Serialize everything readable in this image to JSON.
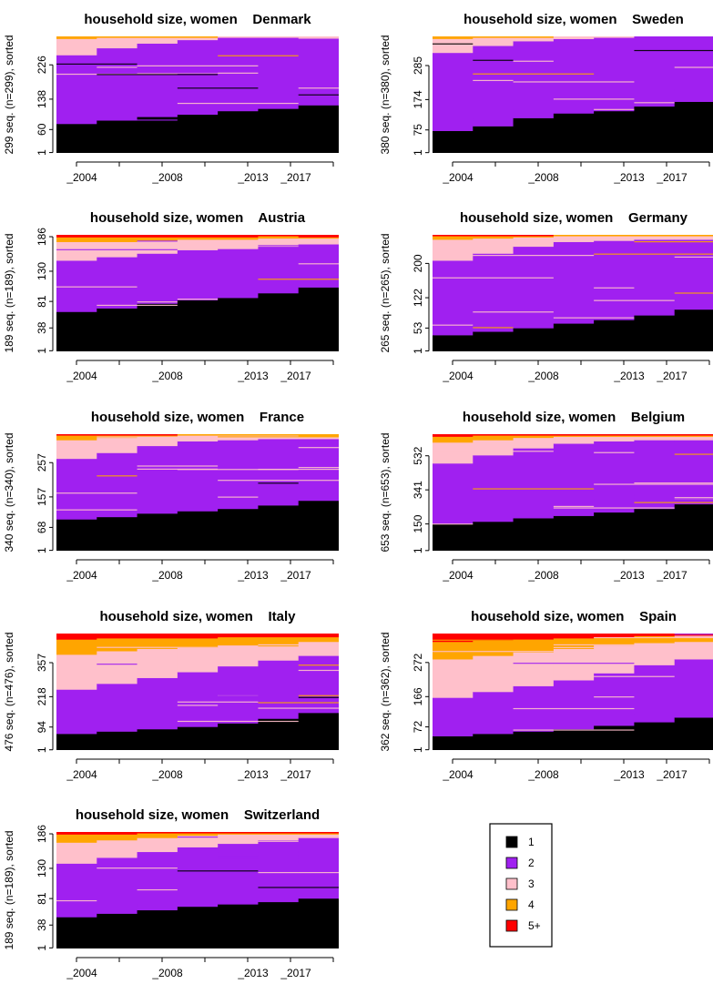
{
  "colors": {
    "1": "#000000",
    "2": "#A020F0",
    "3": "#FFC0CB",
    "4": "#FFA500",
    "5+": "#FF0000",
    "stripe": "#E8B8F0"
  },
  "legend": {
    "items": [
      {
        "label": "1",
        "color": "#000000"
      },
      {
        "label": "2",
        "color": "#A020F0"
      },
      {
        "label": "3",
        "color": "#FFC0CB"
      },
      {
        "label": "4",
        "color": "#FFA500"
      },
      {
        "label": "5+",
        "color": "#FF0000"
      }
    ]
  },
  "chart_data": [
    {
      "type": "area",
      "title": "household size, women    Denmark",
      "ylabel": "299 seq. (n=299), sorted",
      "n": 299,
      "yticks": [
        1,
        60,
        138,
        226
      ],
      "xticks": [
        "_2004",
        "_2008",
        "_2013",
        "_2017"
      ],
      "x": [
        2004,
        2006,
        2008,
        2010,
        2012,
        2014,
        2016
      ],
      "series": [
        {
          "name": "1",
          "values": [
            0.25,
            0.28,
            0.31,
            0.33,
            0.36,
            0.38,
            0.41
          ]
        },
        {
          "name": "2",
          "values": [
            0.59,
            0.62,
            0.63,
            0.64,
            0.63,
            0.61,
            0.58
          ]
        },
        {
          "name": "3",
          "values": [
            0.14,
            0.09,
            0.05,
            0.02,
            0.01,
            0.01,
            0.01
          ]
        },
        {
          "name": "4",
          "values": [
            0.02,
            0.01,
            0.01,
            0.01,
            0,
            0,
            0
          ]
        },
        {
          "name": "5+",
          "values": [
            0,
            0,
            0,
            0,
            0,
            0,
            0
          ]
        }
      ]
    },
    {
      "type": "area",
      "title": "household size, women    Sweden",
      "ylabel": "380 seq. (n=380), sorted",
      "n": 380,
      "yticks": [
        1,
        75,
        174,
        285
      ],
      "xticks": [
        "_2004",
        "_2008",
        "_2013",
        "_2017"
      ],
      "x": [
        2004,
        2006,
        2008,
        2010,
        2012,
        2014,
        2016
      ],
      "series": [
        {
          "name": "1",
          "values": [
            0.19,
            0.23,
            0.3,
            0.34,
            0.36,
            0.4,
            0.44
          ]
        },
        {
          "name": "2",
          "values": [
            0.67,
            0.69,
            0.66,
            0.64,
            0.63,
            0.6,
            0.56
          ]
        },
        {
          "name": "3",
          "values": [
            0.12,
            0.07,
            0.03,
            0.02,
            0.01,
            0,
            0
          ]
        },
        {
          "name": "4",
          "values": [
            0.02,
            0.01,
            0.01,
            0,
            0,
            0,
            0
          ]
        },
        {
          "name": "5+",
          "values": [
            0,
            0,
            0,
            0,
            0,
            0,
            0
          ]
        }
      ]
    },
    {
      "type": "area",
      "title": "household size, women    Austria",
      "ylabel": "189 seq. (n=189), sorted",
      "n": 189,
      "yticks": [
        1,
        38,
        81,
        130,
        186
      ],
      "xticks": [
        "_2004",
        "_2008",
        "_2013",
        "_2017"
      ],
      "x": [
        2004,
        2006,
        2008,
        2010,
        2012,
        2014,
        2016
      ],
      "series": [
        {
          "name": "1",
          "values": [
            0.34,
            0.37,
            0.41,
            0.44,
            0.46,
            0.5,
            0.55
          ]
        },
        {
          "name": "2",
          "values": [
            0.44,
            0.44,
            0.43,
            0.43,
            0.42,
            0.4,
            0.37
          ]
        },
        {
          "name": "3",
          "values": [
            0.16,
            0.13,
            0.11,
            0.09,
            0.08,
            0.07,
            0.05
          ]
        },
        {
          "name": "4",
          "values": [
            0.04,
            0.04,
            0.03,
            0.02,
            0.02,
            0.02,
            0.01
          ]
        },
        {
          "name": "5+",
          "values": [
            0.02,
            0.02,
            0.02,
            0.02,
            0.02,
            0.01,
            0.02
          ]
        }
      ]
    },
    {
      "type": "area",
      "title": "household size, women    Germany",
      "ylabel": "265 seq. (n=265), sorted",
      "n": 265,
      "yticks": [
        1,
        53,
        122,
        200
      ],
      "xticks": [
        "_2004",
        "_2008",
        "_2013",
        "_2017"
      ],
      "x": [
        2004,
        2006,
        2008,
        2010,
        2012,
        2014,
        2016
      ],
      "series": [
        {
          "name": "1",
          "values": [
            0.14,
            0.17,
            0.2,
            0.24,
            0.27,
            0.31,
            0.36
          ]
        },
        {
          "name": "2",
          "values": [
            0.64,
            0.67,
            0.7,
            0.7,
            0.68,
            0.65,
            0.6
          ]
        },
        {
          "name": "3",
          "values": [
            0.18,
            0.13,
            0.08,
            0.05,
            0.04,
            0.03,
            0.03
          ]
        },
        {
          "name": "4",
          "values": [
            0.03,
            0.02,
            0.01,
            0.01,
            0.01,
            0.01,
            0.01
          ]
        },
        {
          "name": "5+",
          "values": [
            0.01,
            0.01,
            0.01,
            0,
            0,
            0,
            0
          ]
        }
      ]
    },
    {
      "type": "area",
      "title": "household size, women    France",
      "ylabel": "340 seq. (n=340), sorted",
      "n": 340,
      "yticks": [
        1,
        68,
        157,
        257
      ],
      "xticks": [
        "_2004",
        "_2008",
        "_2013",
        "_2017"
      ],
      "x": [
        2004,
        2006,
        2008,
        2010,
        2012,
        2014,
        2016
      ],
      "series": [
        {
          "name": "1",
          "values": [
            0.27,
            0.29,
            0.32,
            0.34,
            0.36,
            0.39,
            0.43
          ]
        },
        {
          "name": "2",
          "values": [
            0.52,
            0.55,
            0.58,
            0.6,
            0.59,
            0.57,
            0.53
          ]
        },
        {
          "name": "3",
          "values": [
            0.16,
            0.13,
            0.08,
            0.05,
            0.04,
            0.03,
            0.02
          ]
        },
        {
          "name": "4",
          "values": [
            0.04,
            0.02,
            0.01,
            0.01,
            0.01,
            0.01,
            0.02
          ]
        },
        {
          "name": "5+",
          "values": [
            0.01,
            0.01,
            0.01,
            0,
            0,
            0,
            0
          ]
        }
      ]
    },
    {
      "type": "area",
      "title": "household size, women    Belgium",
      "ylabel": "653 seq. (n=653), sorted",
      "n": 653,
      "yticks": [
        1,
        150,
        341,
        532
      ],
      "xticks": [
        "_2004",
        "_2008",
        "_2013",
        "_2017"
      ],
      "x": [
        2004,
        2006,
        2008,
        2010,
        2012,
        2014,
        2016
      ],
      "series": [
        {
          "name": "1",
          "values": [
            0.23,
            0.25,
            0.28,
            0.3,
            0.33,
            0.36,
            0.4
          ]
        },
        {
          "name": "2",
          "values": [
            0.52,
            0.57,
            0.6,
            0.62,
            0.61,
            0.59,
            0.55
          ]
        },
        {
          "name": "3",
          "values": [
            0.18,
            0.13,
            0.09,
            0.06,
            0.04,
            0.03,
            0.03
          ]
        },
        {
          "name": "4",
          "values": [
            0.05,
            0.04,
            0.02,
            0.01,
            0.01,
            0.01,
            0.01
          ]
        },
        {
          "name": "5+",
          "values": [
            0.02,
            0.01,
            0.01,
            0.01,
            0.01,
            0.01,
            0.01
          ]
        }
      ]
    },
    {
      "type": "area",
      "title": "household size, women    Italy",
      "ylabel": "476 seq. (n=476), sorted",
      "n": 476,
      "yticks": [
        1,
        94,
        218,
        357
      ],
      "xticks": [
        "_2004",
        "_2008",
        "_2013",
        "_2017"
      ],
      "x": [
        2004,
        2006,
        2008,
        2010,
        2012,
        2014,
        2016
      ],
      "series": [
        {
          "name": "1",
          "values": [
            0.14,
            0.16,
            0.18,
            0.2,
            0.23,
            0.27,
            0.32
          ]
        },
        {
          "name": "2",
          "values": [
            0.38,
            0.41,
            0.44,
            0.47,
            0.49,
            0.5,
            0.49
          ]
        },
        {
          "name": "3",
          "values": [
            0.3,
            0.28,
            0.25,
            0.21,
            0.18,
            0.14,
            0.12
          ]
        },
        {
          "name": "4",
          "values": [
            0.13,
            0.11,
            0.09,
            0.08,
            0.07,
            0.06,
            0.04
          ]
        },
        {
          "name": "5+",
          "values": [
            0.05,
            0.04,
            0.04,
            0.04,
            0.03,
            0.03,
            0.03
          ]
        }
      ]
    },
    {
      "type": "area",
      "title": "household size, women    Spain",
      "ylabel": "362 seq. (n=362), sorted",
      "n": 362,
      "yticks": [
        1,
        72,
        166,
        272
      ],
      "xticks": [
        "_2004",
        "_2008",
        "_2013",
        "_2017"
      ],
      "x": [
        2004,
        2006,
        2008,
        2010,
        2012,
        2014,
        2016
      ],
      "series": [
        {
          "name": "1",
          "values": [
            0.12,
            0.14,
            0.16,
            0.18,
            0.21,
            0.24,
            0.28
          ]
        },
        {
          "name": "2",
          "values": [
            0.33,
            0.36,
            0.39,
            0.42,
            0.45,
            0.49,
            0.5
          ]
        },
        {
          "name": "3",
          "values": [
            0.33,
            0.31,
            0.29,
            0.27,
            0.24,
            0.19,
            0.15
          ]
        },
        {
          "name": "4",
          "values": [
            0.15,
            0.13,
            0.11,
            0.09,
            0.07,
            0.06,
            0.04
          ]
        },
        {
          "name": "5+",
          "values": [
            0.07,
            0.06,
            0.05,
            0.04,
            0.03,
            0.02,
            0.03
          ]
        }
      ]
    },
    {
      "type": "area",
      "title": "household size, women    Switzerland",
      "ylabel": "189 seq. (n=189), sorted",
      "n": 189,
      "yticks": [
        1,
        38,
        81,
        130,
        186
      ],
      "xticks": [
        "_2004",
        "_2008",
        "_2013",
        "_2017"
      ],
      "x": [
        2004,
        2006,
        2008,
        2010,
        2012,
        2014,
        2016
      ],
      "series": [
        {
          "name": "1",
          "values": [
            0.27,
            0.3,
            0.33,
            0.36,
            0.38,
            0.4,
            0.43
          ]
        },
        {
          "name": "2",
          "values": [
            0.46,
            0.48,
            0.5,
            0.51,
            0.52,
            0.53,
            0.52
          ]
        },
        {
          "name": "3",
          "values": [
            0.18,
            0.15,
            0.12,
            0.1,
            0.08,
            0.05,
            0.03
          ]
        },
        {
          "name": "4",
          "values": [
            0.07,
            0.05,
            0.04,
            0.02,
            0.01,
            0.01,
            0.01
          ]
        },
        {
          "name": "5+",
          "values": [
            0.02,
            0.02,
            0.01,
            0.01,
            0.01,
            0.01,
            0.01
          ]
        }
      ]
    }
  ]
}
